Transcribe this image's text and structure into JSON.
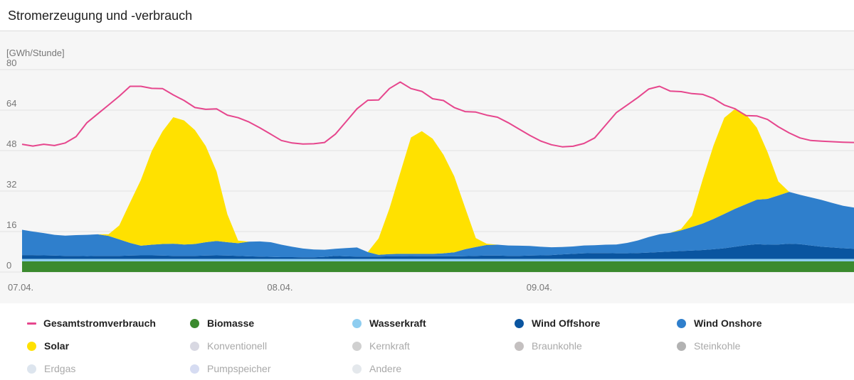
{
  "header": {
    "title": "Stromerzeugung und -verbrauch"
  },
  "colors": {
    "verbrauch": "#e6468d",
    "biomasse": "#3b8a2e",
    "wasserkraft": "#8ecdf0",
    "wind_offshore": "#0a55a0",
    "wind_onshore": "#2f7fcc",
    "solar": "#ffe100",
    "grid": "#e2e2e2",
    "axis_text": "#777777"
  },
  "chart_data": {
    "type": "area",
    "title": "Stromerzeugung und -verbrauch",
    "ylabel": "[GWh/Stunde]",
    "xlabel": "",
    "ylim": [
      0,
      80
    ],
    "yticks": [
      0,
      16,
      32,
      48,
      64,
      80
    ],
    "xlim": [
      0,
      77
    ],
    "x_unit": "hours since 07.04. 00:00",
    "xticks": [
      {
        "x": 0,
        "label": "07.04."
      },
      {
        "x": 24,
        "label": "08.04."
      },
      {
        "x": 48,
        "label": "09.04."
      }
    ],
    "stacked_series": [
      {
        "name": "Biomasse",
        "color_key": "biomasse",
        "values": [
          4.2,
          4.2,
          4.2,
          4.2,
          4.2,
          4.2,
          4.2,
          4.2,
          4.2,
          4.2,
          4.2,
          4.2,
          4.2,
          4.2,
          4.2,
          4.2,
          4.2,
          4.2,
          4.2,
          4.2,
          4.2,
          4.2,
          4.2,
          4.2,
          4.2,
          4.2,
          4.2,
          4.2,
          4.2,
          4.2,
          4.2,
          4.2,
          4.2,
          4.2,
          4.2,
          4.2,
          4.2,
          4.2,
          4.2,
          4.2,
          4.2,
          4.2,
          4.2,
          4.2,
          4.2,
          4.2,
          4.2,
          4.2,
          4.2,
          4.2,
          4.2,
          4.2,
          4.2,
          4.2,
          4.2,
          4.2,
          4.2,
          4.2,
          4.2,
          4.2,
          4.2,
          4.2,
          4.2,
          4.2,
          4.2,
          4.2,
          4.2,
          4.2,
          4.2,
          4.2,
          4.2,
          4.2,
          4.2,
          4.2,
          4.2,
          4.2,
          4.2,
          4.2
        ]
      },
      {
        "name": "Wasserkraft",
        "color_key": "wasserkraft",
        "values": [
          1,
          1,
          1,
          1,
          1,
          1,
          1,
          1,
          1,
          1,
          1,
          1,
          1,
          1,
          1,
          1,
          1,
          1,
          1,
          1,
          1,
          1,
          1,
          1,
          1,
          1,
          1,
          1,
          1,
          1,
          1,
          1,
          1,
          1,
          1,
          1,
          1,
          1,
          1,
          1,
          1,
          1,
          1,
          1,
          1,
          1,
          1,
          1,
          1,
          1,
          1,
          1,
          1,
          1,
          1,
          1,
          1,
          1,
          1,
          1,
          1,
          1,
          1,
          1,
          1,
          1,
          1,
          1,
          1,
          1,
          1,
          1,
          1,
          1,
          1,
          1,
          1,
          1
        ]
      },
      {
        "name": "Wind Offshore",
        "color_key": "wind_offshore",
        "values": [
          1.5,
          1.5,
          1.4,
          1.3,
          1.2,
          1.2,
          1.1,
          1.2,
          1.2,
          1.2,
          1.3,
          1.4,
          1.4,
          1.3,
          1.2,
          1.2,
          1.2,
          1.3,
          1.4,
          1.3,
          1.2,
          1.0,
          0.9,
          0.8,
          0.7,
          0.7,
          0.6,
          0.6,
          0.8,
          1.2,
          1.0,
          0.9,
          0.9,
          0.9,
          1.0,
          1.0,
          1.1,
          1.0,
          1.0,
          1.0,
          1.0,
          1.1,
          1.2,
          1.3,
          1.3,
          1.2,
          1.2,
          1.3,
          1.4,
          1.5,
          1.8,
          2.0,
          2.2,
          2.3,
          2.3,
          2.2,
          2.2,
          2.3,
          2.5,
          2.7,
          2.9,
          3.1,
          3.3,
          3.5,
          3.8,
          4.2,
          4.8,
          5.4,
          5.8,
          5.6,
          5.7,
          6.0,
          5.8,
          5.3,
          4.8,
          4.5,
          4.2,
          4.0
        ]
      },
      {
        "name": "Wind Onshore",
        "color_key": "wind_onshore",
        "values": [
          10.0,
          9.3,
          8.8,
          8.2,
          8.0,
          8.2,
          8.4,
          8.5,
          7.9,
          6.5,
          5.0,
          3.8,
          4.2,
          4.6,
          4.8,
          4.5,
          4.7,
          5.3,
          5.7,
          5.3,
          5.0,
          5.8,
          6.0,
          5.8,
          4.9,
          4.1,
          3.5,
          3.1,
          2.8,
          2.8,
          3.3,
          3.6,
          1.8,
          0.7,
          0.9,
          1.0,
          0.9,
          1.0,
          1.0,
          1.2,
          1.6,
          2.7,
          3.5,
          4.2,
          4.3,
          4.1,
          4.0,
          3.8,
          3.4,
          3.1,
          2.9,
          2.9,
          3.1,
          3.1,
          3.3,
          3.5,
          4.1,
          5.0,
          6.1,
          7.0,
          7.4,
          8.2,
          9.3,
          10.5,
          12.0,
          13.6,
          15.0,
          16.2,
          17.6,
          18.1,
          19.4,
          20.5,
          19.5,
          19.0,
          18.5,
          17.6,
          16.8,
          16.3
        ]
      },
      {
        "name": "Solar",
        "color_key": "solar",
        "values": [
          0,
          0,
          0,
          0,
          0,
          0,
          0,
          0,
          0.6,
          5.5,
          16.0,
          26.0,
          37.0,
          44.5,
          50.0,
          49.0,
          45.0,
          38.0,
          27.5,
          11.0,
          1.0,
          0,
          0,
          0,
          0,
          0,
          0,
          0,
          0,
          0,
          0,
          0,
          0,
          6.5,
          18.0,
          32.0,
          46.0,
          48.5,
          45.5,
          39.0,
          30.0,
          16.5,
          3.5,
          0.5,
          0,
          0,
          0,
          0,
          0,
          0,
          0,
          0,
          0,
          0,
          0,
          0,
          0,
          0,
          0,
          0,
          0,
          0.5,
          4.5,
          17.5,
          29.0,
          38.0,
          39.5,
          35.5,
          28.5,
          18.5,
          5.5,
          0,
          0,
          0,
          0,
          0,
          0,
          0
        ]
      }
    ],
    "line_series": [
      {
        "name": "Gesamtstromverbrauch",
        "color_key": "verbrauch",
        "values": [
          50.5,
          49.8,
          50.5,
          50.0,
          51.0,
          53.5,
          59.0,
          62.5,
          66.0,
          69.5,
          73.4,
          73.4,
          72.6,
          72.5,
          70.0,
          67.8,
          65.0,
          64.3,
          64.5,
          62.0,
          61.0,
          59.3,
          57.0,
          54.5,
          52.0,
          51.0,
          50.6,
          50.7,
          51.2,
          54.5,
          59.5,
          64.5,
          67.9,
          68.0,
          72.5,
          75.1,
          72.5,
          71.4,
          68.5,
          67.8,
          65.0,
          63.4,
          63.2,
          62.0,
          61.2,
          59.0,
          56.5,
          54.0,
          51.8,
          50.3,
          49.5,
          49.7,
          50.8,
          53.0,
          58.0,
          63.0,
          66.0,
          69.0,
          72.3,
          73.4,
          71.5,
          71.3,
          70.5,
          70.2,
          68.6,
          66.0,
          64.5,
          61.8,
          61.7,
          60.3,
          57.4,
          55.0,
          53.0,
          52.0,
          51.7,
          51.5,
          51.3,
          51.2
        ]
      }
    ]
  },
  "legend": {
    "row1": [
      {
        "label": "Gesamtstromverbrauch",
        "color": "#e6468d",
        "symbol": "line",
        "active": true
      },
      {
        "label": "Biomasse",
        "color": "#3b8a2e",
        "symbol": "dot",
        "active": true
      },
      {
        "label": "Wasserkraft",
        "color": "#8ecdf0",
        "symbol": "dot",
        "active": true
      },
      {
        "label": "Wind Offshore",
        "color": "#0a55a0",
        "symbol": "dot",
        "active": true
      },
      {
        "label": "Wind Onshore",
        "color": "#2f7fcc",
        "symbol": "dot",
        "active": true
      }
    ],
    "row2": [
      {
        "label": "Solar",
        "color": "#ffe100",
        "symbol": "dot",
        "active": true
      },
      {
        "label": "Konventionell",
        "color": "#d8d8e2",
        "symbol": "dot",
        "active": false
      },
      {
        "label": "Kernkraft",
        "color": "#d0d0d0",
        "symbol": "dot",
        "active": false
      },
      {
        "label": "Braunkohle",
        "color": "#c4c0c0",
        "symbol": "dot",
        "active": false
      },
      {
        "label": "Steinkohle",
        "color": "#b2b2b2",
        "symbol": "dot",
        "active": false
      }
    ],
    "row3": [
      {
        "label": "Erdgas",
        "color": "#dde5ee",
        "symbol": "dot",
        "active": false
      },
      {
        "label": "Pumpspeicher",
        "color": "#d6dcf2",
        "symbol": "dot",
        "active": false
      },
      {
        "label": "Andere",
        "color": "#e4e8ec",
        "symbol": "dot",
        "active": false
      }
    ]
  }
}
